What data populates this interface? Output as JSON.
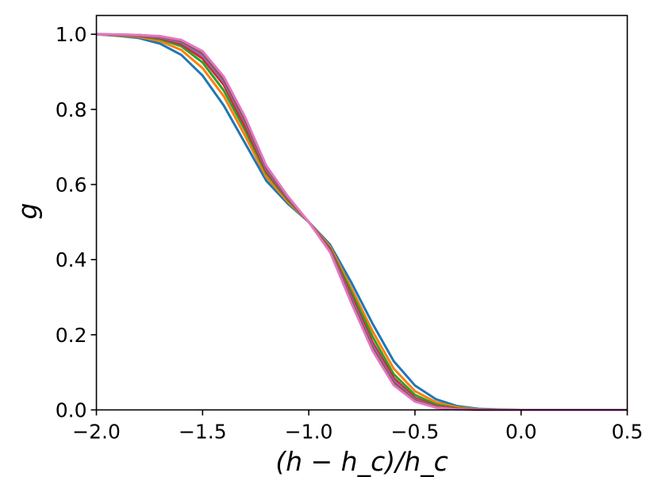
{
  "chart_data": {
    "type": "line",
    "title": "",
    "xlabel": "(h − h_c)/h_c",
    "ylabel": "g",
    "xlim": [
      -2.0,
      0.5
    ],
    "ylim": [
      0.0,
      1.05
    ],
    "grid": false,
    "legend": "none",
    "x_ticks": [
      -2.0,
      -1.5,
      -1.0,
      -0.5,
      0.0,
      0.5
    ],
    "x_tick_labels": [
      "−2.0",
      "−1.5",
      "−1.0",
      "−0.5",
      "0.0",
      "0.5"
    ],
    "y_ticks": [
      0.0,
      0.2,
      0.4,
      0.6,
      0.8,
      1.0
    ],
    "y_tick_labels": [
      "0.0",
      "0.2",
      "0.4",
      "0.6",
      "0.8",
      "1.0"
    ],
    "x": [
      -2.0,
      -1.9,
      -1.8,
      -1.7,
      -1.6,
      -1.5,
      -1.4,
      -1.3,
      -1.2,
      -1.1,
      -1.0,
      -0.9,
      -0.8,
      -0.7,
      -0.6,
      -0.5,
      -0.4,
      -0.3,
      -0.2,
      -0.1,
      0.0,
      0.1,
      0.2,
      0.3,
      0.4,
      0.5
    ],
    "series": [
      {
        "color": "#1f77b4",
        "values": [
          1.0,
          0.996,
          0.99,
          0.975,
          0.945,
          0.89,
          0.81,
          0.71,
          0.61,
          0.55,
          0.5,
          0.44,
          0.34,
          0.23,
          0.13,
          0.065,
          0.028,
          0.01,
          0.003,
          0.001,
          0.0,
          0.0,
          0.0,
          0.0,
          0.0,
          0.0
        ]
      },
      {
        "color": "#ff7f0e",
        "values": [
          1.0,
          0.997,
          0.993,
          0.982,
          0.958,
          0.91,
          0.835,
          0.73,
          0.62,
          0.555,
          0.5,
          0.435,
          0.325,
          0.21,
          0.11,
          0.05,
          0.02,
          0.007,
          0.002,
          0.0005,
          0.0,
          0.0,
          0.0,
          0.0,
          0.0,
          0.0
        ]
      },
      {
        "color": "#2ca02c",
        "values": [
          1.0,
          0.998,
          0.995,
          0.987,
          0.968,
          0.925,
          0.85,
          0.745,
          0.63,
          0.56,
          0.5,
          0.43,
          0.315,
          0.195,
          0.095,
          0.04,
          0.014,
          0.004,
          0.001,
          0.0002,
          0.0,
          0.0,
          0.0,
          0.0,
          0.0,
          0.0
        ]
      },
      {
        "color": "#d62728",
        "values": [
          1.0,
          0.999,
          0.996,
          0.99,
          0.974,
          0.935,
          0.865,
          0.755,
          0.635,
          0.563,
          0.5,
          0.428,
          0.305,
          0.18,
          0.085,
          0.032,
          0.01,
          0.003,
          0.0006,
          0.0001,
          0.0,
          0.0,
          0.0,
          0.0,
          0.0,
          0.0
        ]
      },
      {
        "color": "#9467bd",
        "values": [
          1.0,
          0.999,
          0.997,
          0.992,
          0.978,
          0.943,
          0.873,
          0.765,
          0.64,
          0.565,
          0.5,
          0.425,
          0.298,
          0.172,
          0.078,
          0.028,
          0.008,
          0.002,
          0.0004,
          0.0,
          0.0,
          0.0,
          0.0,
          0.0,
          0.0,
          0.0
        ]
      },
      {
        "color": "#8c564b",
        "values": [
          1.0,
          0.999,
          0.998,
          0.994,
          0.982,
          0.95,
          0.88,
          0.772,
          0.645,
          0.567,
          0.5,
          0.423,
          0.292,
          0.165,
          0.072,
          0.025,
          0.007,
          0.0015,
          0.0003,
          0.0,
          0.0,
          0.0,
          0.0,
          0.0,
          0.0,
          0.0
        ]
      },
      {
        "color": "#e377c2",
        "values": [
          1.0,
          1.0,
          0.998,
          0.995,
          0.985,
          0.955,
          0.887,
          0.78,
          0.65,
          0.57,
          0.5,
          0.42,
          0.285,
          0.158,
          0.066,
          0.022,
          0.006,
          0.0012,
          0.0002,
          0.0,
          0.0,
          0.0,
          0.0,
          0.0,
          0.0,
          0.0
        ]
      }
    ]
  }
}
